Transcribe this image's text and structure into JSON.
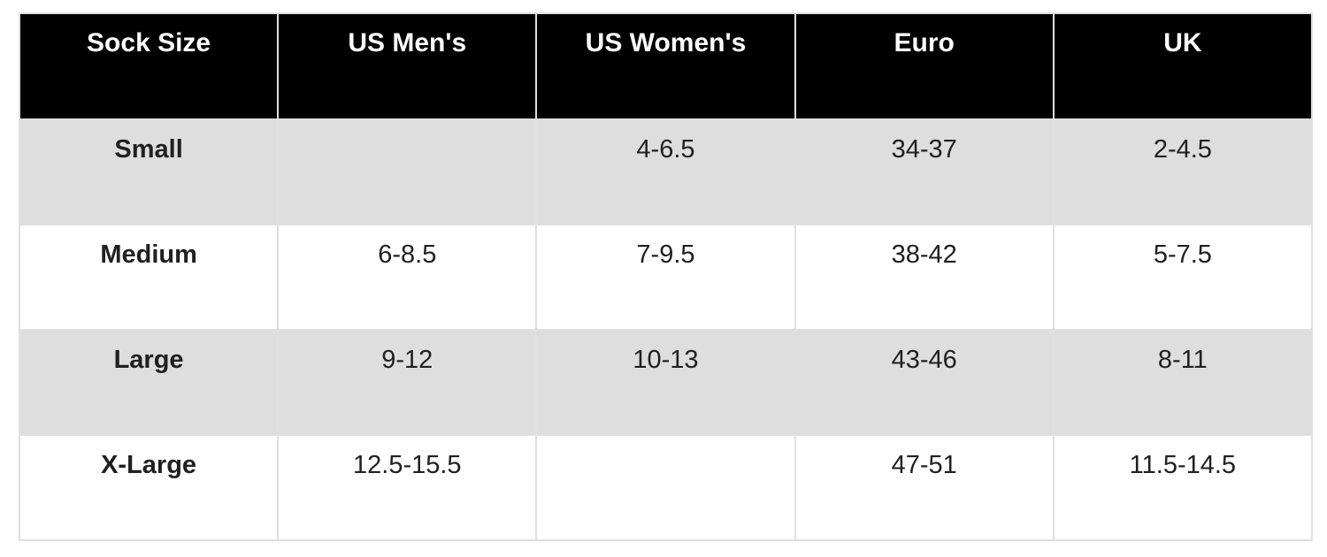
{
  "chart_data": {
    "type": "table",
    "columns": [
      "Sock Size",
      "US Men's",
      "US Women's",
      "Euro",
      "UK"
    ],
    "rows": [
      [
        "Small",
        "",
        "4-6.5",
        "34-37",
        "2-4.5"
      ],
      [
        "Medium",
        "6-8.5",
        "7-9.5",
        "38-42",
        "5-7.5"
      ],
      [
        "Large",
        "9-12",
        "10-13",
        "43-46",
        "8-11"
      ],
      [
        "X-Large",
        "12.5-15.5",
        "",
        "47-51",
        "11.5-14.5"
      ]
    ],
    "layout": {
      "header_position": "top",
      "row_striping": "odd-rows-gray",
      "text_align": "center",
      "vertical_align": "top"
    },
    "colors": {
      "header_bg": "#000000",
      "header_text": "#ffffff",
      "stripe_row_bg": "#dedede",
      "plain_row_bg": "#ffffff",
      "cell_border": "#e0e0e0",
      "body_text": "#202020",
      "page_bg": "#ffffff"
    }
  }
}
